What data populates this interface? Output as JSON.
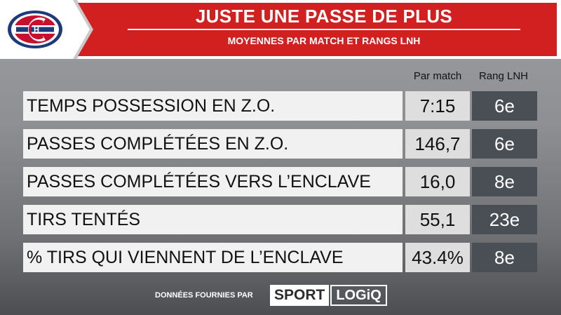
{
  "header": {
    "logo_icon": "canadiens-logo-icon",
    "title": "JUSTE UNE PASSE DE PLUS",
    "subtitle": "MOYENNES PAR MATCH ET RANGS LNH",
    "accent_color": "#d22020"
  },
  "columns": {
    "per_game": "Par match",
    "rank": "Rang LNH"
  },
  "rows": [
    {
      "label": "TEMPS POSSESSION EN Z.O.",
      "value": "7:15",
      "rank": "6e"
    },
    {
      "label": "PASSES COMPLÉTÉES EN Z.O.",
      "value": "146,7",
      "rank": "6e"
    },
    {
      "label": "PASSES COMPLÉTÉES VERS L’ENCLAVE",
      "value": "16,0",
      "rank": "8e"
    },
    {
      "label": "TIRS TENTÉS",
      "value": "55,1",
      "rank": "23e"
    },
    {
      "label": "% TIRS QUI VIENNENT DE L’ENCLAVE",
      "value": "43.4%",
      "rank": "8e"
    }
  ],
  "footer": {
    "source_text": "DONNÉES FOURNIES PAR",
    "brand_part1": "SPORT",
    "brand_part2": "LOGiQ"
  }
}
